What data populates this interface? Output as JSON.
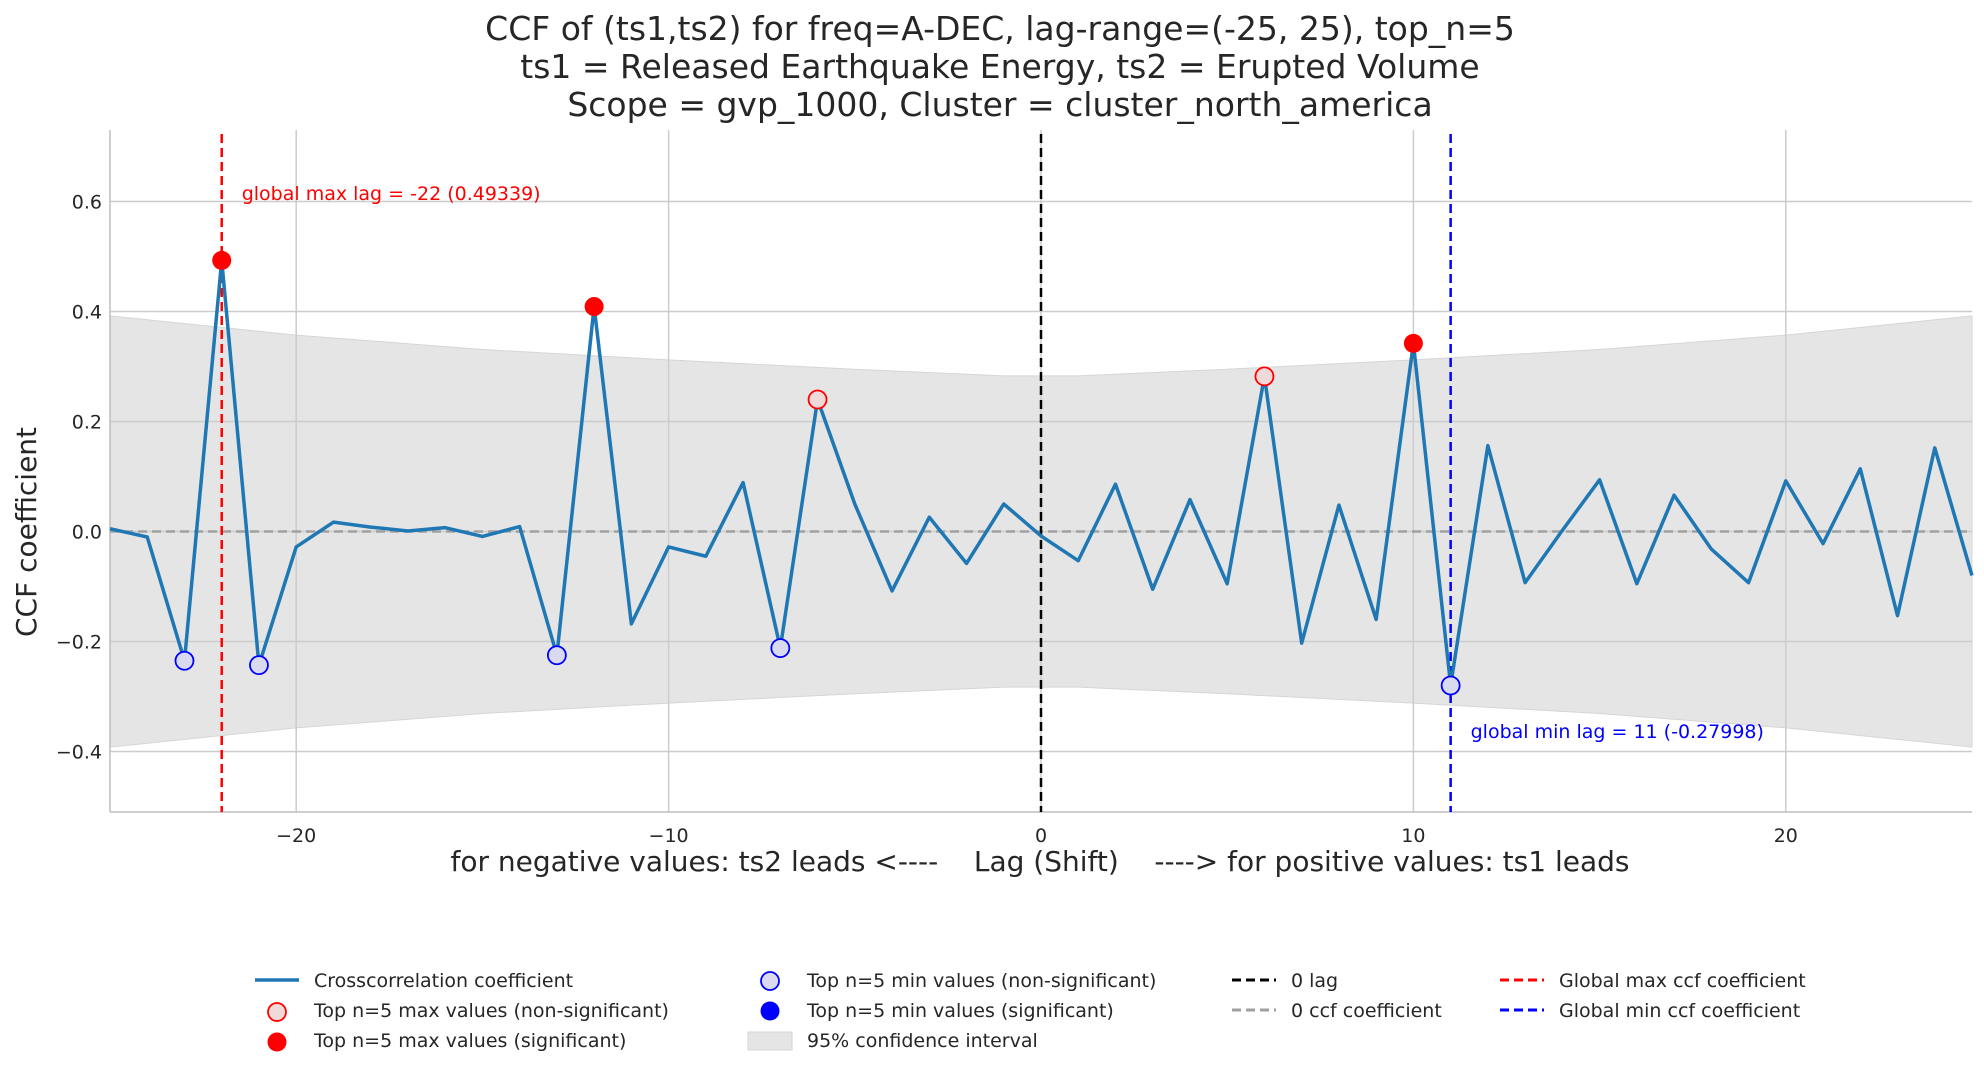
{
  "colors": {
    "line": "#1f77b4",
    "max": "#ff0000",
    "min": "#0000ff",
    "zero_lag": "#000000",
    "zero_ccf": "#a0a0a0",
    "ci_fill": "#e5e5e5",
    "grid": "#cccccc",
    "max_nonsig_fill": "#f0d9d9",
    "min_nonsig_fill": "#d9d9f0"
  },
  "chart_data": {
    "type": "line",
    "title_lines": [
      "CCF of (ts1,ts2) for freq=A-DEC, lag-range=(-25, 25), top_n=5",
      "ts1 = Released Earthquake Energy, ts2 = Erupted Volume",
      "Scope = gvp_1000, Cluster = cluster_north_america"
    ],
    "xlabel": "for negative values: ts2 leads <----    Lag (Shift)    ----> for positive values: ts1 leads",
    "ylabel": "CCF coefficient",
    "xlim": [
      -25,
      25
    ],
    "ylim": [
      -0.51,
      0.73
    ],
    "xticks": [
      -20,
      -10,
      0,
      10,
      20
    ],
    "xtick_labels": [
      "−20",
      "−10",
      "0",
      "10",
      "20"
    ],
    "yticks": [
      -0.4,
      -0.2,
      0.0,
      0.2,
      0.4,
      0.6
    ],
    "ytick_labels": [
      "−0.4",
      "−0.2",
      "0.0",
      "0.2",
      "0.4",
      "0.6"
    ],
    "grid": true,
    "series": [
      {
        "name": "Crosscorrelation coefficient",
        "x": [
          -25,
          -24,
          -23,
          -22,
          -21,
          -20,
          -19,
          -18,
          -17,
          -16,
          -15,
          -14,
          -13,
          -12,
          -11,
          -10,
          -9,
          -8,
          -7,
          -6,
          -5,
          -4,
          -3,
          -2,
          -1,
          0,
          1,
          2,
          3,
          4,
          5,
          6,
          7,
          8,
          9,
          10,
          11,
          12,
          13,
          14,
          15,
          16,
          17,
          18,
          19,
          20,
          21,
          22,
          23,
          24,
          25
        ],
        "y": [
          0.005,
          -0.01,
          -0.235,
          0.493,
          -0.243,
          -0.028,
          0.017,
          0.008,
          0.001,
          0.007,
          -0.009,
          0.009,
          -0.225,
          0.409,
          -0.168,
          -0.028,
          -0.045,
          0.089,
          -0.212,
          0.24,
          0.05,
          -0.108,
          0.026,
          -0.058,
          0.05,
          -0.008,
          -0.053,
          0.086,
          -0.105,
          0.058,
          -0.095,
          0.282,
          -0.203,
          0.048,
          -0.16,
          0.342,
          -0.28,
          0.156,
          -0.093,
          0.002,
          0.094,
          -0.095,
          0.066,
          -0.032,
          -0.093,
          0.092,
          -0.022,
          0.114,
          -0.153,
          0.152,
          -0.08
        ]
      }
    ],
    "confidence_interval": {
      "name": "95% confidence interval",
      "x": [
        -25,
        -20,
        -15,
        -10,
        -5,
        -1,
        0,
        1,
        5,
        10,
        15,
        20,
        25
      ],
      "upper": [
        0.392,
        0.357,
        0.331,
        0.312,
        0.295,
        0.283,
        0.283,
        0.283,
        0.295,
        0.312,
        0.331,
        0.357,
        0.392
      ]
    },
    "top_max_significant": {
      "x": [
        -22,
        -12,
        10
      ],
      "y": [
        0.493,
        0.409,
        0.342
      ]
    },
    "top_max_nonsignificant": {
      "x": [
        -6,
        6
      ],
      "y": [
        0.24,
        0.282
      ]
    },
    "top_min_significant": {
      "x": [],
      "y": []
    },
    "top_min_nonsignificant": {
      "x": [
        -23,
        -21,
        -13,
        -7,
        11
      ],
      "y": [
        -0.235,
        -0.243,
        -0.225,
        -0.212,
        -0.28
      ]
    },
    "global_max": {
      "lag": -22,
      "value": 0.49339,
      "label": "global max lag = -22 (0.49339)"
    },
    "global_min": {
      "lag": 11,
      "value": -0.27998,
      "label": "global min lag = 11 (-0.27998)"
    },
    "zero_lag": 0,
    "zero_ccf": 0.0,
    "legend": {
      "placement": "bottom-center",
      "entries": [
        {
          "label": "Crosscorrelation coefficient",
          "kind": "line"
        },
        {
          "label": "Top n=5 max values (non-significant)",
          "kind": "max-nonsig"
        },
        {
          "label": "Top n=5 max values (significant)",
          "kind": "max-sig"
        },
        {
          "label": "Top n=5 min values (non-significant)",
          "kind": "min-nonsig"
        },
        {
          "label": "Top n=5 min values (significant)",
          "kind": "min-sig"
        },
        {
          "label": "95% confidence interval",
          "kind": "ci"
        },
        {
          "label": "0 lag",
          "kind": "zero-lag"
        },
        {
          "label": "0 ccf coefficient",
          "kind": "zero-ccf"
        },
        {
          "label": "Global max ccf coefficient",
          "kind": "global-max"
        },
        {
          "label": "Global min ccf coefficient",
          "kind": "global-min"
        }
      ]
    }
  }
}
